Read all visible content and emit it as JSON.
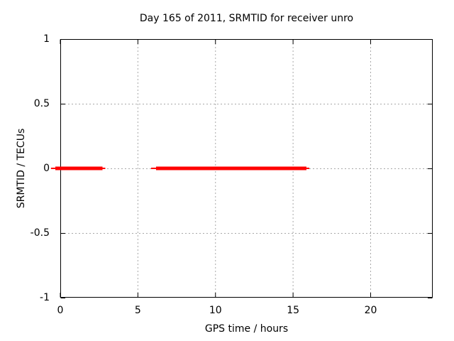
{
  "chart_data": {
    "type": "line",
    "title": "Day 165 of 2011, SRMTID for receiver unro",
    "xlabel": "GPS time / hours",
    "ylabel": "SRMTID / TECUs",
    "xlim": [
      0,
      24
    ],
    "ylim": [
      -1,
      1
    ],
    "xticks": [
      {
        "v": 0,
        "label": "0"
      },
      {
        "v": 5,
        "label": "5"
      },
      {
        "v": 10,
        "label": "10"
      },
      {
        "v": 15,
        "label": "15"
      },
      {
        "v": 20,
        "label": "20"
      }
    ],
    "yticks": [
      {
        "v": 1,
        "label": "1"
      },
      {
        "v": 0.5,
        "label": "0.5"
      },
      {
        "v": 0,
        "label": "0"
      },
      {
        "v": -0.5,
        "label": "-0.5"
      },
      {
        "v": -1,
        "label": "-1"
      }
    ],
    "grid_x": [
      5,
      10,
      15,
      20
    ],
    "grid_y": [
      0.5,
      0,
      -0.5
    ],
    "grid_on": true,
    "legend": "none",
    "series": [
      {
        "name": "SRMTID",
        "color": "#ff0000",
        "y_value": 0,
        "thick_segments_hours": [
          [
            -0.32,
            2.72
          ],
          [
            6.17,
            15.86
          ]
        ],
        "thin_segments_hours": [
          [
            -0.6,
            -0.32
          ],
          [
            2.72,
            2.9
          ],
          [
            5.85,
            6.17
          ],
          [
            15.86,
            16.05
          ]
        ]
      }
    ]
  },
  "colors": {
    "background": "#ffffff",
    "border": "#000000",
    "grid": "#a8a8a8",
    "text": "#000000",
    "series_red": "#ff0000"
  }
}
